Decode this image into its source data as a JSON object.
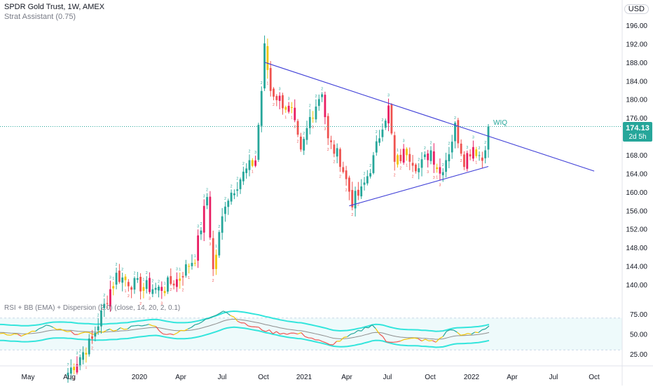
{
  "header": {
    "symbol_title": "SPDR Gold Trust, 1W, AMEX",
    "indicator_label": "Strat Assistant (0.75)",
    "currency": "USD"
  },
  "price_badge": {
    "value": "174.13",
    "countdown": "2d 5h"
  },
  "annotation": {
    "text": "WIQ"
  },
  "rsi_panel": {
    "label": "RSI + BB (EMA) + Dispersion (2.0) (close, 14, 20, 2, 0.1)"
  },
  "colors": {
    "up": "#26a69a",
    "down": "#ef5350",
    "inside": "#f2c300",
    "outside": "#e91e63",
    "trendline": "#3f3fd7",
    "rsi_band": "#33e5dc",
    "rsi_basis": "#8e8e8e",
    "price_line": "#26a69a"
  },
  "chart_data": [
    {
      "type": "candlestick",
      "title": "SPDR Gold Trust, 1W, AMEX",
      "x_ticks": [
        "May",
        "Aug",
        "2020",
        "Apr",
        "Jul",
        "Oct",
        "2021",
        "Apr",
        "Jul",
        "Oct",
        "2022",
        "Apr",
        "Jul",
        "Oct"
      ],
      "y_ticks": [
        140.0,
        144.0,
        148.0,
        152.0,
        156.0,
        160.0,
        164.0,
        168.0,
        172.0,
        176.0,
        180.0,
        184.0,
        188.0,
        192.0,
        196.0
      ],
      "ylim": [
        137,
        199
      ],
      "last_price": 174.13,
      "grid": false,
      "anchors": [
        {
          "i": 0,
          "c": 121
        },
        {
          "i": 8,
          "c": 128
        },
        {
          "i": 14,
          "c": 139
        },
        {
          "i": 16,
          "c": 142
        },
        {
          "i": 22,
          "c": 140
        },
        {
          "i": 30,
          "c": 139
        },
        {
          "i": 36,
          "c": 141
        },
        {
          "i": 42,
          "c": 146
        },
        {
          "i": 46,
          "c": 159
        },
        {
          "i": 48,
          "c": 143
        },
        {
          "i": 52,
          "c": 158
        },
        {
          "i": 57,
          "c": 163
        },
        {
          "i": 62,
          "c": 167
        },
        {
          "i": 64,
          "c": 182
        },
        {
          "i": 65,
          "c": 191
        },
        {
          "i": 67,
          "c": 182
        },
        {
          "i": 70,
          "c": 180
        },
        {
          "i": 74,
          "c": 177
        },
        {
          "i": 77,
          "c": 168
        },
        {
          "i": 80,
          "c": 176
        },
        {
          "i": 84,
          "c": 182
        },
        {
          "i": 86,
          "c": 171
        },
        {
          "i": 90,
          "c": 167
        },
        {
          "i": 94,
          "c": 158
        },
        {
          "i": 97,
          "c": 160
        },
        {
          "i": 101,
          "c": 167
        },
        {
          "i": 104,
          "c": 175
        },
        {
          "i": 106,
          "c": 178
        },
        {
          "i": 108,
          "c": 166
        },
        {
          "i": 112,
          "c": 169
        },
        {
          "i": 116,
          "c": 165
        },
        {
          "i": 120,
          "c": 169
        },
        {
          "i": 123,
          "c": 164
        },
        {
          "i": 126,
          "c": 169
        },
        {
          "i": 128,
          "c": 174
        },
        {
          "i": 131,
          "c": 167
        },
        {
          "i": 134,
          "c": 170
        },
        {
          "i": 137,
          "c": 167
        },
        {
          "i": 139,
          "c": 174.13
        }
      ],
      "trendlines": [
        {
          "from": {
            "i": 65,
            "v": 188
          },
          "to": {
            "i": 174,
            "v": 164.5
          }
        },
        {
          "from": {
            "i": 93,
            "v": 157
          },
          "to": {
            "i": 139,
            "v": 165.5
          }
        }
      ]
    },
    {
      "type": "line",
      "title": "RSI + BB (EMA) + Dispersion (2.0) (close, 14, 20, 2, 0.1)",
      "y_ticks": [
        25.0,
        50.0,
        75.0
      ],
      "ylim": [
        18,
        82
      ],
      "band_range": [
        30,
        70
      ],
      "rsi_anchors": [
        {
          "i": 0,
          "v": 52
        },
        {
          "i": 8,
          "v": 48
        },
        {
          "i": 14,
          "v": 60
        },
        {
          "i": 20,
          "v": 52
        },
        {
          "i": 26,
          "v": 50
        },
        {
          "i": 34,
          "v": 56
        },
        {
          "i": 44,
          "v": 62
        },
        {
          "i": 48,
          "v": 48
        },
        {
          "i": 56,
          "v": 60
        },
        {
          "i": 64,
          "v": 80
        },
        {
          "i": 70,
          "v": 62
        },
        {
          "i": 78,
          "v": 52
        },
        {
          "i": 86,
          "v": 50
        },
        {
          "i": 94,
          "v": 36
        },
        {
          "i": 100,
          "v": 48
        },
        {
          "i": 106,
          "v": 62
        },
        {
          "i": 110,
          "v": 40
        },
        {
          "i": 118,
          "v": 44
        },
        {
          "i": 124,
          "v": 40
        },
        {
          "i": 128,
          "v": 56
        },
        {
          "i": 132,
          "v": 48
        },
        {
          "i": 136,
          "v": 52
        },
        {
          "i": 139,
          "v": 60
        }
      ]
    }
  ]
}
